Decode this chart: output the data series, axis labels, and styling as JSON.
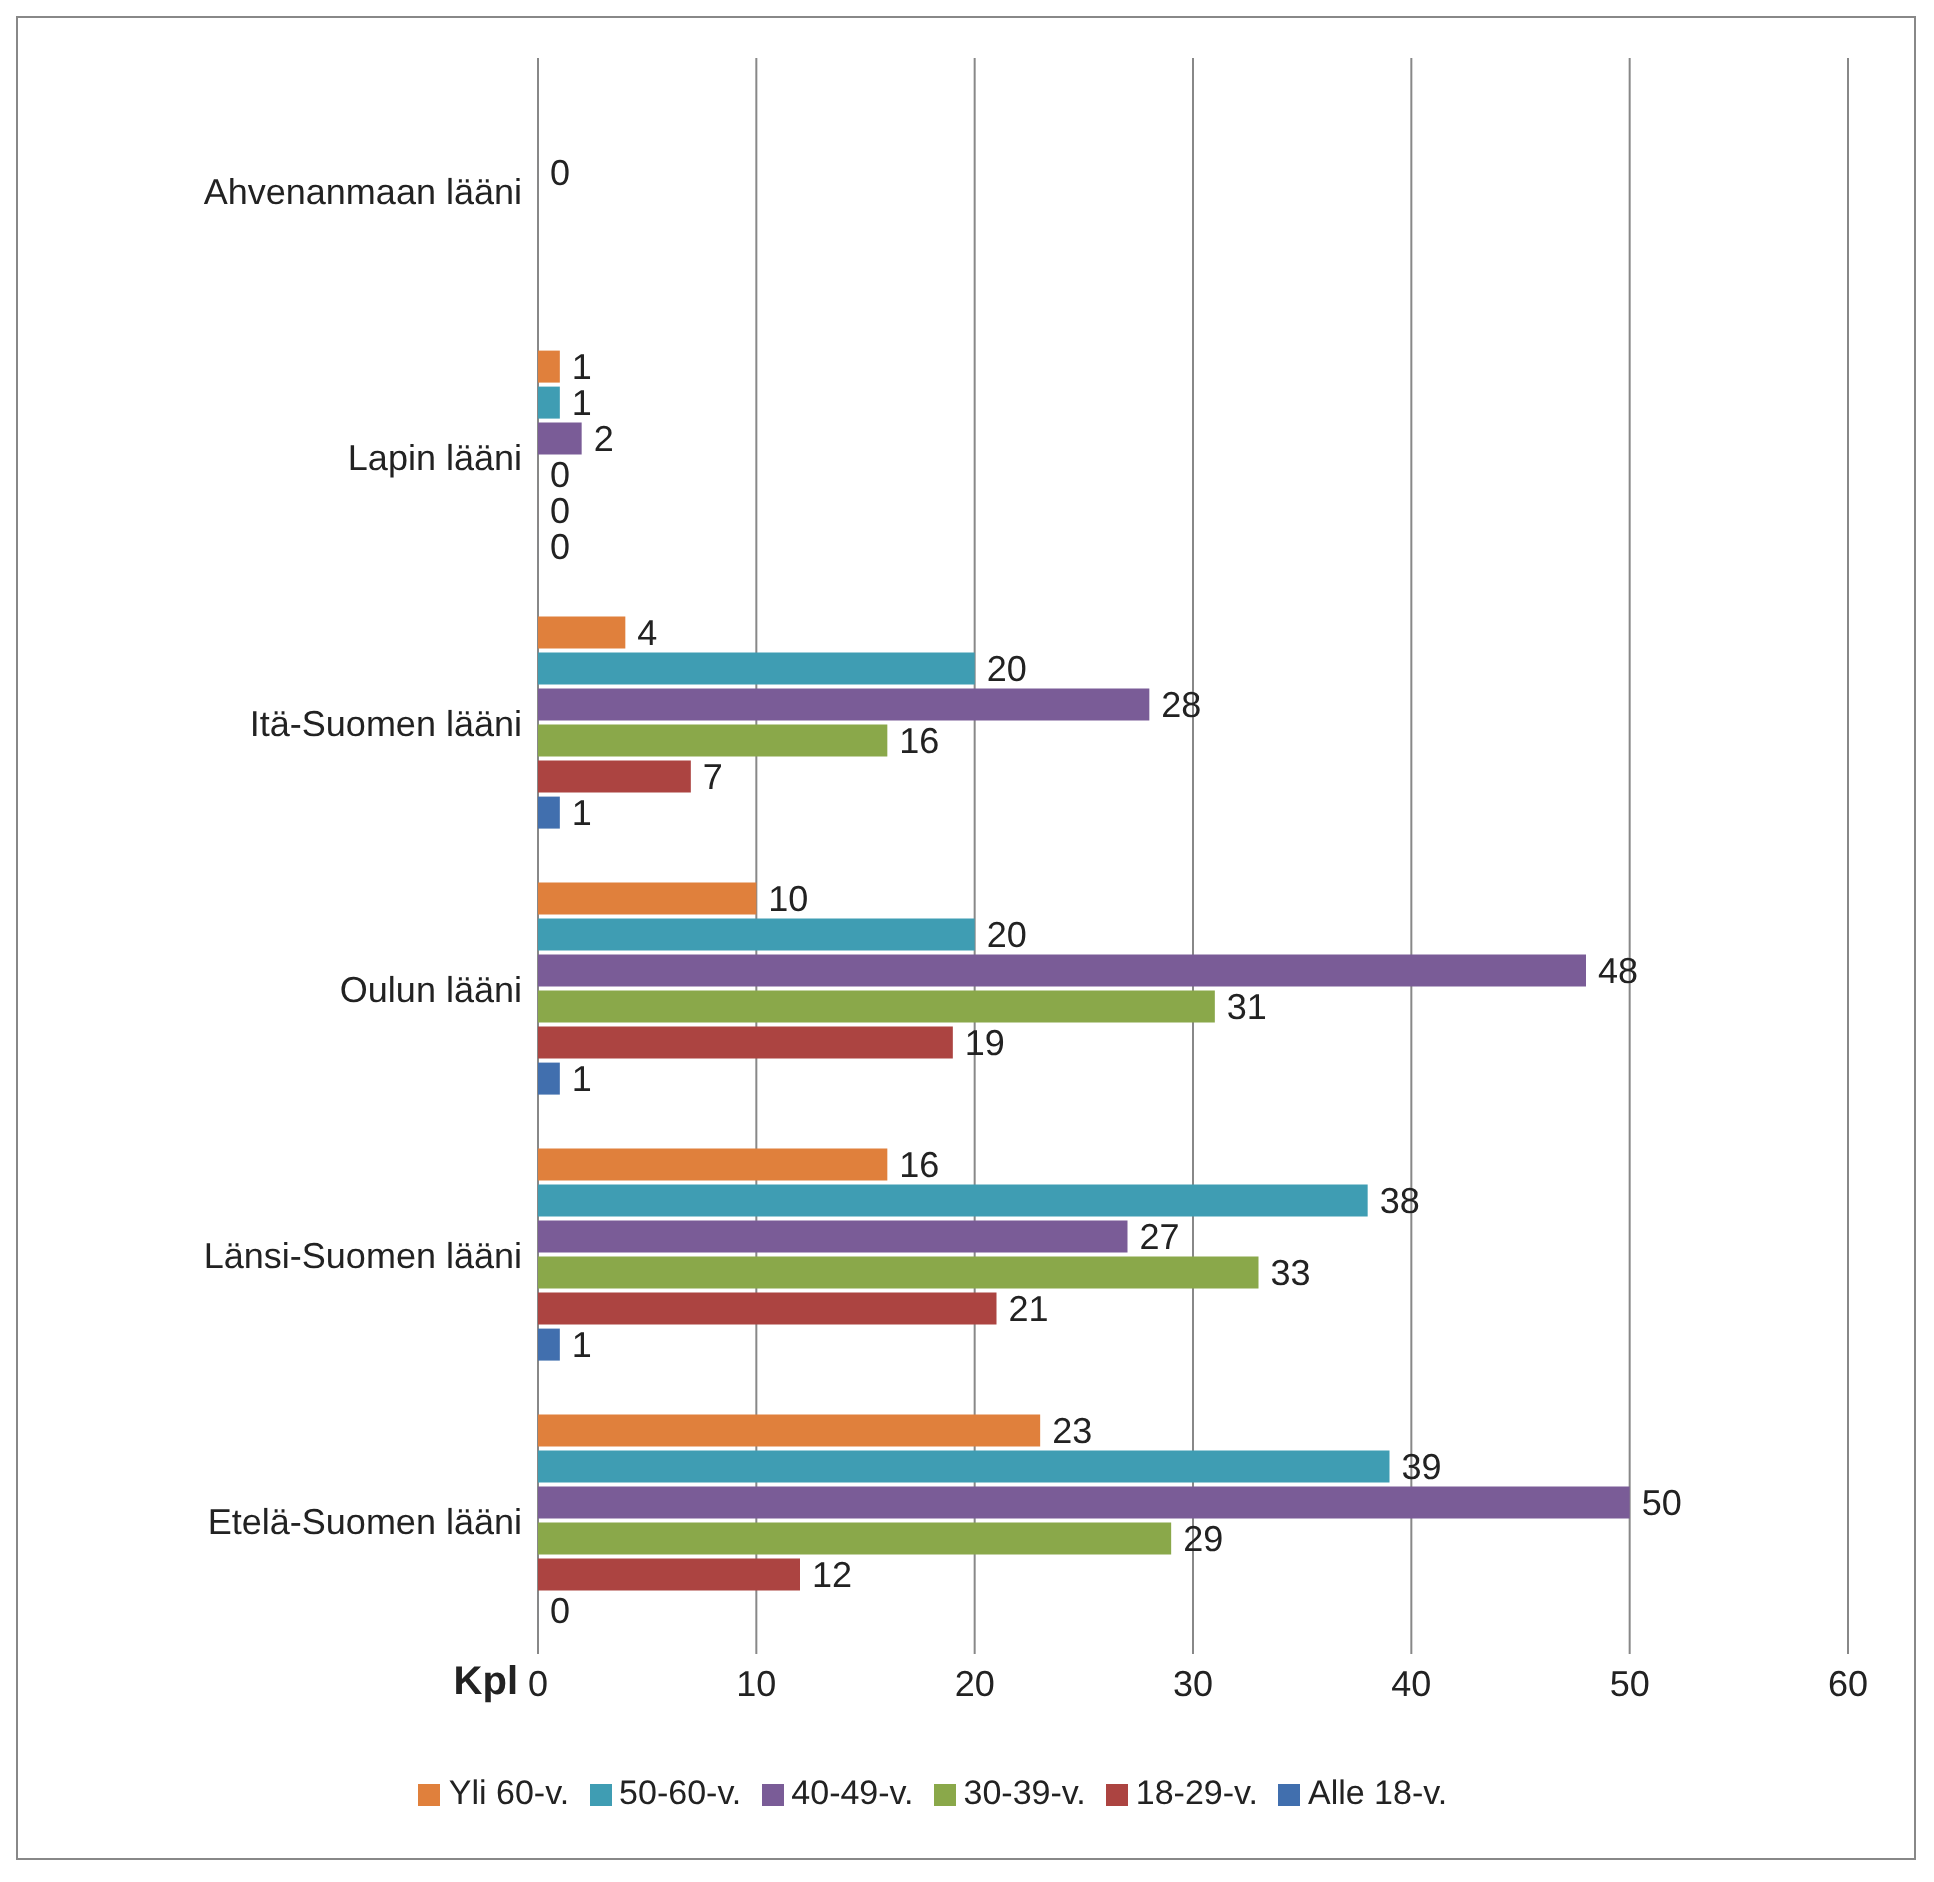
{
  "chart_data": {
    "type": "bar",
    "orientation": "horizontal",
    "xlabel": "Kpl",
    "categories": [
      "Ahvenanmaan lääni",
      "Lapin lääni",
      "Itä-Suomen lääni",
      "Oulun lääni",
      "Länsi-Suomen lääni",
      "Etelä-Suomen lääni"
    ],
    "series": [
      {
        "name": "Yli 60-v.",
        "color": "#e0803c",
        "values": [
          null,
          1,
          4,
          10,
          16,
          23
        ]
      },
      {
        "name": "50-60-v.",
        "color": "#3f9db3",
        "values": [
          null,
          1,
          20,
          20,
          38,
          39
        ]
      },
      {
        "name": "40-49-v.",
        "color": "#7a5c97",
        "values": [
          0,
          2,
          28,
          48,
          27,
          50
        ]
      },
      {
        "name": "30-39-v.",
        "color": "#8aa84a",
        "values": [
          null,
          0,
          16,
          31,
          33,
          29
        ]
      },
      {
        "name": "18-29-v.",
        "color": "#ac4441",
        "values": [
          null,
          0,
          7,
          19,
          21,
          12
        ]
      },
      {
        "name": "Alle 18-v.",
        "color": "#416fae",
        "values": [
          null,
          0,
          1,
          1,
          1,
          0
        ]
      }
    ],
    "xlim": [
      0,
      60
    ],
    "xticks": [
      0,
      10,
      20,
      30,
      40,
      50,
      60
    ],
    "grid": "x",
    "legend": "bottom",
    "data_labels": true
  }
}
